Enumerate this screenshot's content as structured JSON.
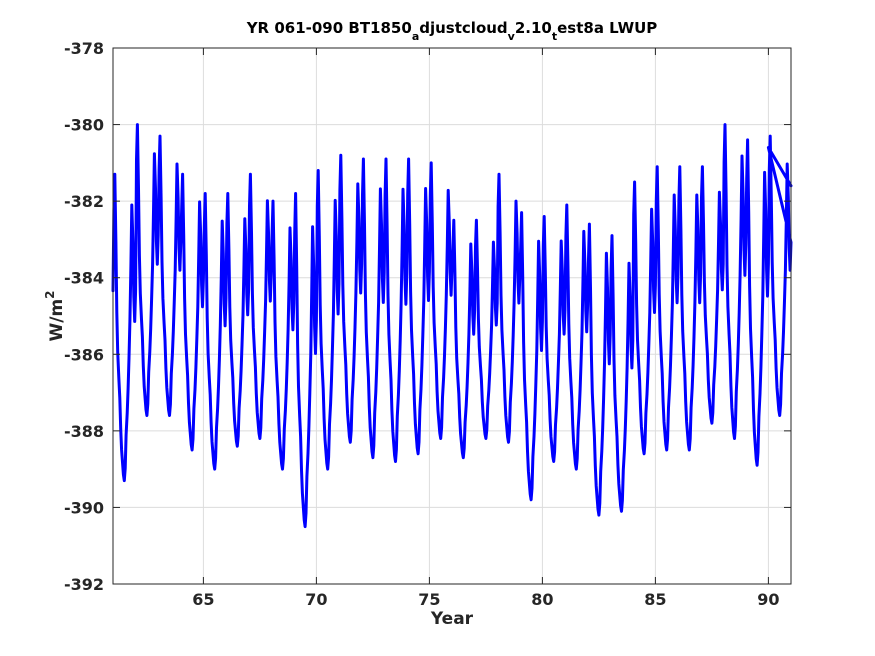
{
  "chart_data": {
    "type": "line",
    "title": {
      "parts": [
        {
          "text": "YR 061-090 BT1850",
          "shift": "none"
        },
        {
          "text": "a",
          "shift": "sub"
        },
        {
          "text": "djustcloud",
          "shift": "none"
        },
        {
          "text": "v",
          "shift": "sub"
        },
        {
          "text": "2.10",
          "shift": "none"
        },
        {
          "text": "t",
          "shift": "sub"
        },
        {
          "text": "est8a LWUP",
          "shift": "none"
        }
      ]
    },
    "xlabel": "Year",
    "ylabel": {
      "base": "W/m",
      "sup": "2"
    },
    "xlim": [
      61,
      91
    ],
    "ylim": [
      -392,
      -378
    ],
    "xticks": [
      65,
      70,
      75,
      80,
      85,
      90
    ],
    "yticks": [
      -378,
      -380,
      -382,
      -384,
      -386,
      -388,
      -390,
      -392
    ],
    "grid": true,
    "line_color": "#0000ff",
    "series": [
      {
        "seasonal_shape": [
          [
            0.0,
            0.62
          ],
          [
            0.04,
            0.88
          ],
          [
            0.08,
            1.0
          ],
          [
            0.13,
            0.78
          ],
          [
            0.17,
            0.55
          ],
          [
            0.21,
            0.42
          ],
          [
            0.26,
            0.33
          ],
          [
            0.3,
            0.27
          ],
          [
            0.34,
            0.17
          ],
          [
            0.38,
            0.1
          ],
          [
            0.42,
            0.06
          ],
          [
            0.46,
            0.02
          ],
          [
            0.5,
            0.0
          ],
          [
            0.54,
            0.04
          ],
          [
            0.58,
            0.15
          ],
          [
            0.63,
            0.22
          ],
          [
            0.67,
            0.3
          ],
          [
            0.71,
            0.4
          ],
          [
            0.75,
            0.52
          ],
          [
            0.79,
            0.7
          ],
          [
            0.83,
            0.9
          ],
          [
            0.88,
            0.78
          ],
          [
            0.92,
            0.6
          ],
          [
            0.96,
            0.52
          ],
          [
            1.0,
            0.62
          ]
        ],
        "annual_max": [
          -381.3,
          -380.0,
          -380.3,
          -381.3,
          -381.8,
          -381.8,
          -381.3,
          -382.0,
          -381.8,
          -381.2,
          -380.8,
          -380.9,
          -380.9,
          -380.9,
          -381.0,
          -382.5,
          -382.5,
          -381.3,
          -382.3,
          -382.4,
          -382.1,
          -382.6,
          -382.9,
          -381.5,
          -381.1,
          -381.1,
          -381.1,
          -380.0,
          -380.4,
          -380.3
        ],
        "annual_min": [
          -389.3,
          -387.6,
          -387.6,
          -388.5,
          -389.0,
          -388.4,
          -388.2,
          -389.0,
          -390.5,
          -389.0,
          -388.3,
          -388.7,
          -388.8,
          -388.6,
          -388.2,
          -388.7,
          -388.2,
          -388.3,
          -389.8,
          -388.8,
          -389.0,
          -390.2,
          -390.1,
          -388.6,
          -388.5,
          -388.5,
          -387.8,
          -388.2,
          -388.9,
          -387.6
        ],
        "end": [
          90.0,
          -380.6,
          91.0,
          -381.6
        ]
      }
    ]
  }
}
